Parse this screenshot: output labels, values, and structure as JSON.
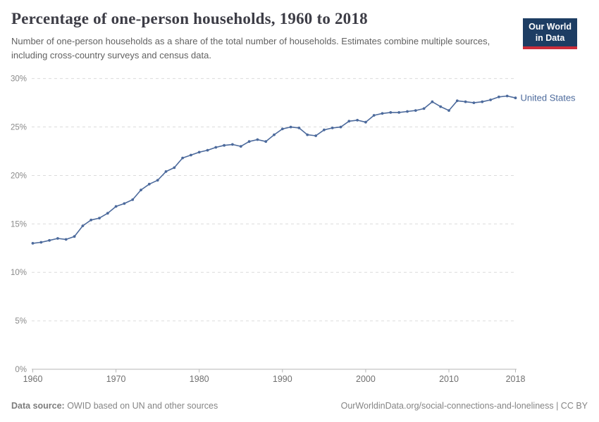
{
  "header": {
    "title": "Percentage of one-person households, 1960 to 2018",
    "subtitle": "Number of one-person households as a share of the total number of households. Estimates combine multiple sources, including cross-country surveys and census data.",
    "logo": {
      "line1": "Our World",
      "line2": "in Data"
    }
  },
  "footer": {
    "source_label": "Data source:",
    "source_text": " OWID based on UN and other sources",
    "rights_text": "OurWorldinData.org/social-connections-and-loneliness | CC BY"
  },
  "colors": {
    "accent_line": "#4C6A9C",
    "grid": "#dcdcdc",
    "axis": "#b5b5b5",
    "logo_navy": "#1d3d63",
    "logo_red": "#cb2d3a"
  },
  "chart_data": {
    "type": "line",
    "title": "Percentage of one-person households, 1960 to 2018",
    "xlabel": "",
    "ylabel": "",
    "xlim": [
      1960,
      2018
    ],
    "ylim": [
      0,
      30
    ],
    "grid": "horizontal dashed",
    "legend_position": "end-of-line label",
    "x_ticks": [
      1960,
      1970,
      1980,
      1990,
      2000,
      2010,
      2018
    ],
    "y_ticks": [
      0,
      5,
      10,
      15,
      20,
      25,
      30
    ],
    "y_tick_suffix": "%",
    "x": [
      1960,
      1961,
      1962,
      1963,
      1964,
      1965,
      1966,
      1967,
      1968,
      1969,
      1970,
      1971,
      1972,
      1973,
      1974,
      1975,
      1976,
      1977,
      1978,
      1979,
      1980,
      1981,
      1982,
      1983,
      1984,
      1985,
      1986,
      1987,
      1988,
      1989,
      1990,
      1991,
      1992,
      1993,
      1994,
      1995,
      1996,
      1997,
      1998,
      1999,
      2000,
      2001,
      2002,
      2003,
      2004,
      2005,
      2006,
      2007,
      2008,
      2009,
      2010,
      2011,
      2012,
      2013,
      2014,
      2015,
      2016,
      2017,
      2018
    ],
    "series": [
      {
        "name": "United States",
        "color": "#4C6A9C",
        "values": [
          13.0,
          13.1,
          13.3,
          13.5,
          13.4,
          13.7,
          14.8,
          15.4,
          15.6,
          16.1,
          16.8,
          17.1,
          17.5,
          18.5,
          19.1,
          19.5,
          20.4,
          20.8,
          21.8,
          22.1,
          22.4,
          22.6,
          22.9,
          23.1,
          23.2,
          23.0,
          23.5,
          23.7,
          23.5,
          24.2,
          24.8,
          25.0,
          24.9,
          24.2,
          24.1,
          24.7,
          24.9,
          25.0,
          25.6,
          25.7,
          25.5,
          26.2,
          26.4,
          26.5,
          26.5,
          26.6,
          26.7,
          26.9,
          27.6,
          27.1,
          26.7,
          27.7,
          27.6,
          27.5,
          27.6,
          27.8,
          28.1,
          28.2,
          28.0
        ]
      }
    ]
  }
}
